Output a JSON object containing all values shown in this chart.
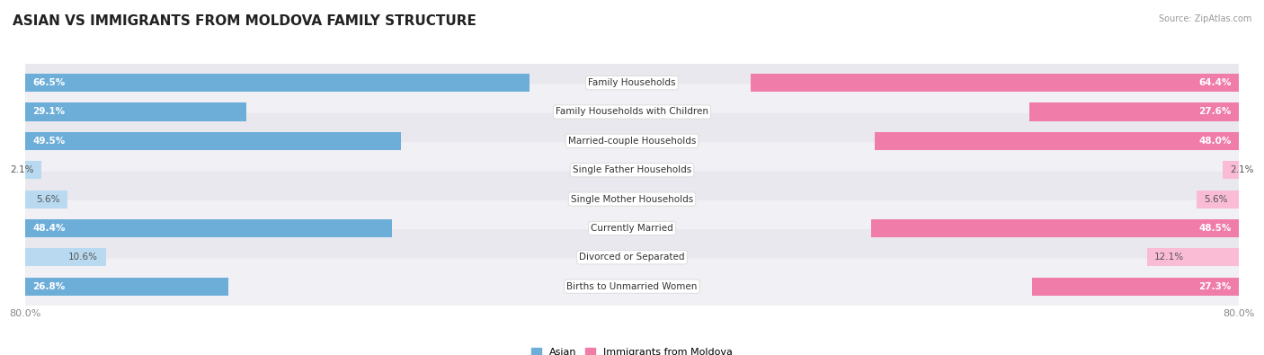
{
  "title": "ASIAN VS IMMIGRANTS FROM MOLDOVA FAMILY STRUCTURE",
  "source": "Source: ZipAtlas.com",
  "categories": [
    "Family Households",
    "Family Households with Children",
    "Married-couple Households",
    "Single Father Households",
    "Single Mother Households",
    "Currently Married",
    "Divorced or Separated",
    "Births to Unmarried Women"
  ],
  "asian_values": [
    66.5,
    29.1,
    49.5,
    2.1,
    5.6,
    48.4,
    10.6,
    26.8
  ],
  "moldova_values": [
    64.4,
    27.6,
    48.0,
    2.1,
    5.6,
    48.5,
    12.1,
    27.3
  ],
  "asian_color": "#6daed9",
  "moldova_color": "#f07caa",
  "asian_color_light": "#b8d9f0",
  "moldova_color_light": "#f9bcd4",
  "axis_max": 80.0,
  "axis_label_left": "80.0%",
  "axis_label_right": "80.0%",
  "legend_asian": "Asian",
  "legend_moldova": "Immigrants from Moldova",
  "row_bg_dark": "#e8e8ee",
  "row_bg_light": "#f0f0f5",
  "title_fontsize": 11,
  "label_fontsize": 7.5,
  "value_fontsize": 7.5,
  "bar_height": 0.62,
  "inside_threshold": 15
}
